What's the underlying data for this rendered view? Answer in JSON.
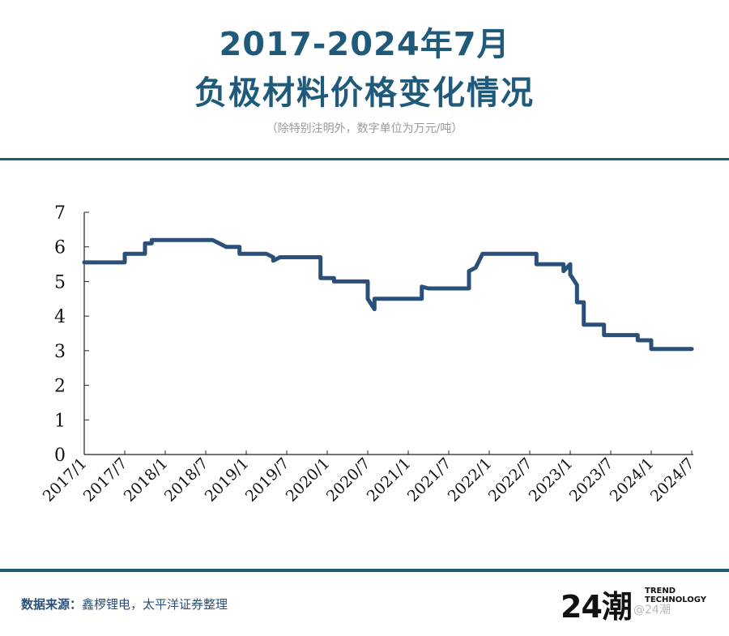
{
  "header": {
    "title_line1": "2017-2024年7月",
    "title_line2": "负极材料价格变化情况",
    "subtitle": "（除特别注明外，数字单位为万元/吨）"
  },
  "chart_data": {
    "type": "line",
    "title": "2017-2024年7月 负极材料价格变化情况",
    "unit": "万元/吨",
    "xlabel": "",
    "ylabel": "",
    "ylim": [
      0,
      7
    ],
    "yticks": [
      0,
      1,
      2,
      3,
      4,
      5,
      6,
      7
    ],
    "xticks": [
      "2017/1",
      "2017/7",
      "2018/1",
      "2018/7",
      "2019/1",
      "2019/7",
      "2020/1",
      "2020/7",
      "2021/1",
      "2021/7",
      "2022/1",
      "2022/7",
      "2023/1",
      "2023/7",
      "2024/1",
      "2024/7"
    ],
    "grid": false,
    "line_color": "#2a4f78",
    "series": [
      {
        "points": [
          [
            "2017/1",
            5.55
          ],
          [
            "2017/7",
            5.55
          ],
          [
            "2017/7",
            5.8
          ],
          [
            "2017/10",
            5.8
          ],
          [
            "2017/10",
            6.1
          ],
          [
            "2017/11",
            6.1
          ],
          [
            "2017/11",
            6.2
          ],
          [
            "2018/8",
            6.2
          ],
          [
            "2018/9",
            6.1
          ],
          [
            "2018/10",
            6.0
          ],
          [
            "2018/12",
            6.0
          ],
          [
            "2018/12",
            5.8
          ],
          [
            "2019/4",
            5.8
          ],
          [
            "2019/5",
            5.7
          ],
          [
            "2019/5",
            5.6
          ],
          [
            "2019/6",
            5.7
          ],
          [
            "2019/12",
            5.7
          ],
          [
            "2019/12",
            5.1
          ],
          [
            "2020/2",
            5.1
          ],
          [
            "2020/2",
            5.0
          ],
          [
            "2020/7",
            5.0
          ],
          [
            "2020/7",
            4.5
          ],
          [
            "2020/8",
            4.2
          ],
          [
            "2020/8",
            4.5
          ],
          [
            "2021/3",
            4.5
          ],
          [
            "2021/3",
            4.85
          ],
          [
            "2021/4",
            4.8
          ],
          [
            "2021/10",
            4.8
          ],
          [
            "2021/10",
            5.3
          ],
          [
            "2021/11",
            5.4
          ],
          [
            "2021/12",
            5.8
          ],
          [
            "2022/8",
            5.8
          ],
          [
            "2022/8",
            5.5
          ],
          [
            "2022/12",
            5.5
          ],
          [
            "2022/12",
            5.3
          ],
          [
            "2023/1",
            5.5
          ],
          [
            "2023/1",
            5.2
          ],
          [
            "2023/2",
            4.9
          ],
          [
            "2023/2",
            4.4
          ],
          [
            "2023/3",
            4.4
          ],
          [
            "2023/3",
            3.75
          ],
          [
            "2023/6",
            3.75
          ],
          [
            "2023/6",
            3.45
          ],
          [
            "2023/11",
            3.45
          ],
          [
            "2023/11",
            3.3
          ],
          [
            "2024/1",
            3.3
          ],
          [
            "2024/1",
            3.05
          ],
          [
            "2024/7",
            3.05
          ]
        ]
      }
    ]
  },
  "footer": {
    "source_label": "数据来源：",
    "source_text": "鑫椤锂电，太平洋证券整理"
  },
  "logo": {
    "number": "24潮",
    "trend_line1": "TREND",
    "trend_line2": "TECHNOLOGY"
  },
  "watermark": "@24潮"
}
